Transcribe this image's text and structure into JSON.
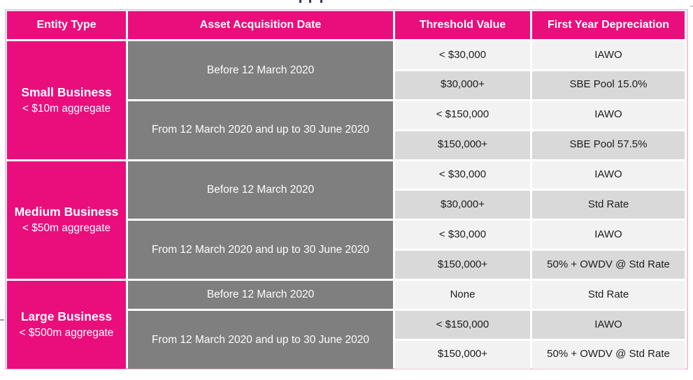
{
  "table": {
    "headers": [
      "Entity Type",
      "Asset Acquisition Date",
      "Threshold Value",
      "First Year Depreciation"
    ],
    "groups": [
      {
        "entity": "Small Business",
        "aggregate": "< $10m aggregate",
        "periods": [
          {
            "date": "Before 12 March 2020",
            "rows": [
              {
                "threshold": "< $30,000",
                "depreciation": "IAWO"
              },
              {
                "threshold": "$30,000+",
                "depreciation": "SBE Pool 15.0%"
              }
            ]
          },
          {
            "date": "From 12 March 2020 and up to 30 June 2020",
            "rows": [
              {
                "threshold": "< $150,000",
                "depreciation": "IAWO"
              },
              {
                "threshold": "$150,000+",
                "depreciation": "SBE Pool 57.5%"
              }
            ]
          }
        ]
      },
      {
        "entity": "Medium Business",
        "aggregate": "< $50m aggregate",
        "periods": [
          {
            "date": "Before 12 March 2020",
            "rows": [
              {
                "threshold": "< $30,000",
                "depreciation": "IAWO"
              },
              {
                "threshold": "$30,000+",
                "depreciation": "Std Rate"
              }
            ]
          },
          {
            "date": "From 12 March 2020 and up to 30 June 2020",
            "rows": [
              {
                "threshold": "< $30,000",
                "depreciation": "IAWO"
              },
              {
                "threshold": "$150,000+",
                "depreciation": "50% + OWDV @ Std Rate"
              }
            ]
          }
        ]
      },
      {
        "entity": "Large Business",
        "aggregate": "< $500m aggregate",
        "periods": [
          {
            "date": "Before 12 March 2020",
            "rows": [
              {
                "threshold": "None",
                "depreciation": "Std Rate"
              }
            ]
          },
          {
            "date": "From 12 March 2020 and up to 30 June 2020",
            "rows": [
              {
                "threshold": "< $150,000",
                "depreciation": "IAWO"
              },
              {
                "threshold": "$150,000+",
                "depreciation": "50% + OWDV @ Std Rate"
              }
            ]
          }
        ]
      }
    ],
    "colors": {
      "accent_pink": "#e90e7c",
      "date_cell_gray": "#7f7f7f",
      "row_light": "#f2f2f2",
      "row_alt": "#d9d9d9",
      "outer_border_pink": "#f6c3dc"
    }
  }
}
